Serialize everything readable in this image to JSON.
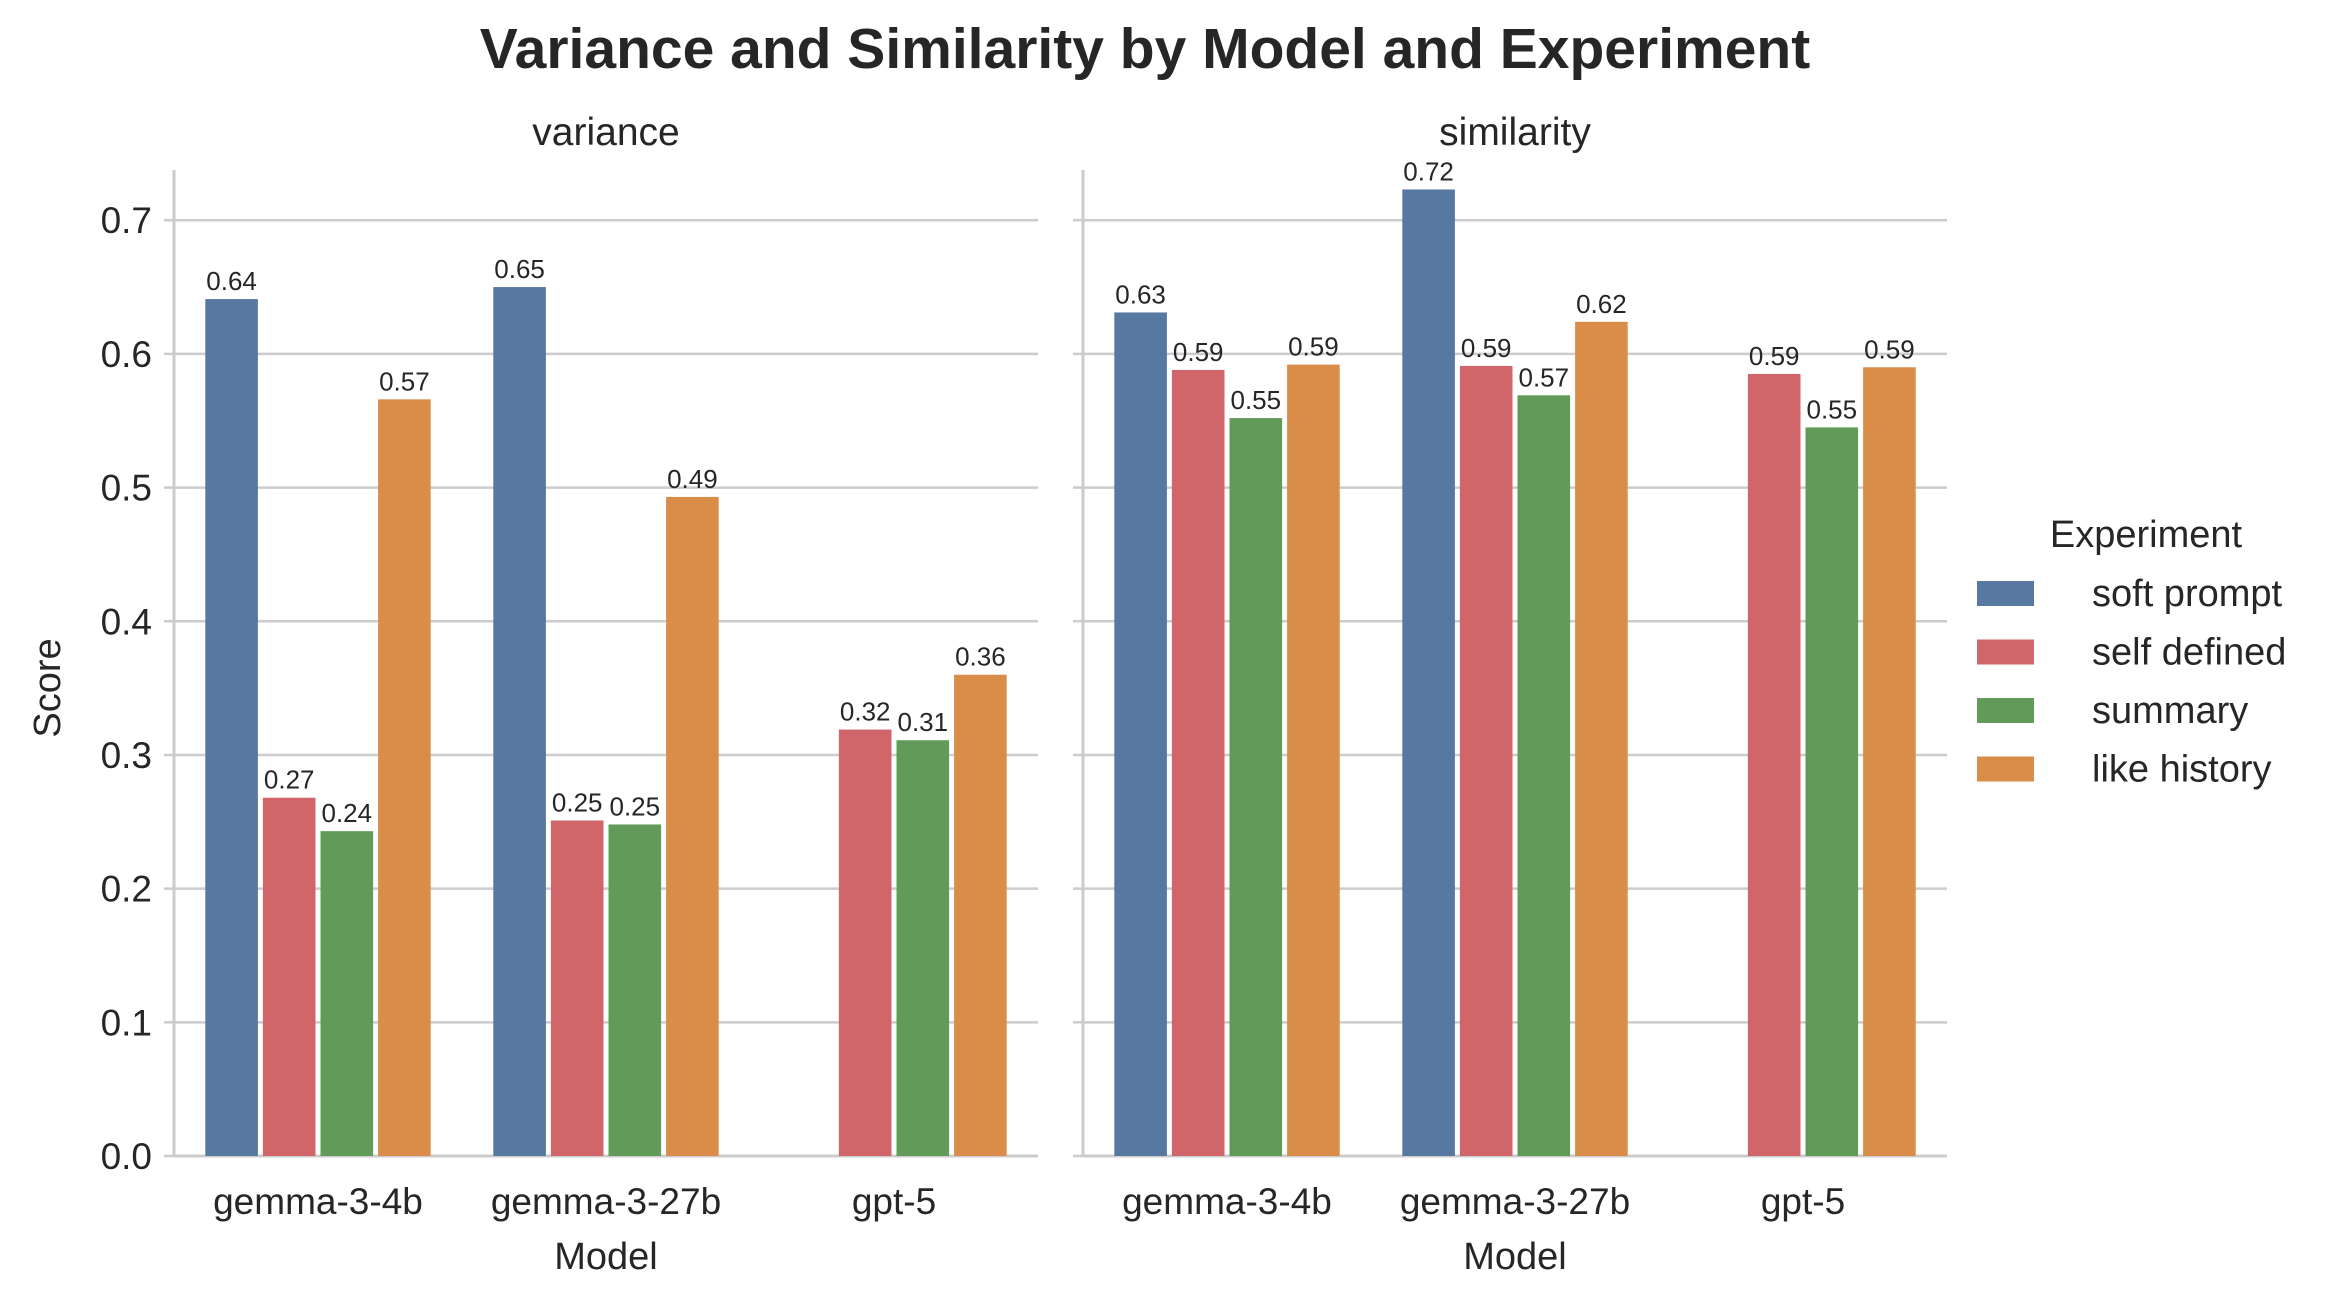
{
  "chart_data": {
    "type": "bar",
    "title": "Variance and Similarity by Model and Experiment",
    "ylabel": "Score",
    "xlabel": "Model",
    "ylim": [
      0,
      0.76
    ],
    "yticks": [
      0.0,
      0.1,
      0.2,
      0.3,
      0.4,
      0.5,
      0.6,
      0.7
    ],
    "ytick_labels": [
      "0.0",
      "0.1",
      "0.2",
      "0.3",
      "0.4",
      "0.5",
      "0.6",
      "0.7"
    ],
    "grid": "horizontal",
    "legend": {
      "title": "Experiment",
      "placement": "right",
      "entries": [
        "soft prompt",
        "self defined",
        "summary",
        "like history"
      ]
    },
    "colors": {
      "soft prompt": "#5778a0",
      "self defined": "#d0666a",
      "summary": "#629b59",
      "like history": "#d98d48"
    },
    "categories": [
      "gemma-3-4b",
      "gemma-3-27b",
      "gpt-5"
    ],
    "panels": [
      {
        "title": "variance",
        "series": [
          {
            "name": "soft prompt",
            "values": [
              0.641,
              0.65,
              null
            ],
            "labels": [
              "0.64",
              "0.65",
              ""
            ]
          },
          {
            "name": "self defined",
            "values": [
              0.268,
              0.251,
              0.319
            ],
            "labels": [
              "0.27",
              "0.25",
              "0.32"
            ]
          },
          {
            "name": "summary",
            "values": [
              0.243,
              0.248,
              0.311
            ],
            "labels": [
              "0.24",
              "0.25",
              "0.31"
            ]
          },
          {
            "name": "like history",
            "values": [
              0.566,
              0.493,
              0.36
            ],
            "labels": [
              "0.57",
              "0.49",
              "0.36"
            ]
          }
        ]
      },
      {
        "title": "similarity",
        "series": [
          {
            "name": "soft prompt",
            "values": [
              0.631,
              0.723,
              null
            ],
            "labels": [
              "0.63",
              "0.72",
              ""
            ]
          },
          {
            "name": "self defined",
            "values": [
              0.588,
              0.591,
              0.585
            ],
            "labels": [
              "0.59",
              "0.59",
              "0.59"
            ]
          },
          {
            "name": "summary",
            "values": [
              0.552,
              0.569,
              0.545
            ],
            "labels": [
              "0.55",
              "0.57",
              "0.55"
            ]
          },
          {
            "name": "like history",
            "values": [
              0.592,
              0.624,
              0.59
            ],
            "labels": [
              "0.59",
              "0.62",
              "0.59"
            ]
          }
        ]
      }
    ]
  }
}
